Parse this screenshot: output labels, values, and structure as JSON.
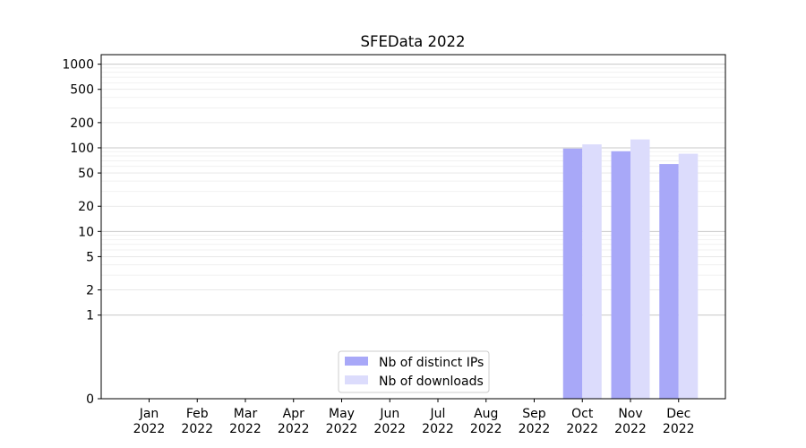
{
  "chart_data": {
    "type": "bar",
    "title": "SFEData 2022",
    "xlabel": "",
    "ylabel": "",
    "y_scale": "symlog",
    "ylim": [
      0,
      1300
    ],
    "grid": true,
    "legend_position": "lower-center",
    "categories": [
      {
        "month": "Jan",
        "year": "2022"
      },
      {
        "month": "Feb",
        "year": "2022"
      },
      {
        "month": "Mar",
        "year": "2022"
      },
      {
        "month": "Apr",
        "year": "2022"
      },
      {
        "month": "May",
        "year": "2022"
      },
      {
        "month": "Jun",
        "year": "2022"
      },
      {
        "month": "Jul",
        "year": "2022"
      },
      {
        "month": "Aug",
        "year": "2022"
      },
      {
        "month": "Sep",
        "year": "2022"
      },
      {
        "month": "Oct",
        "year": "2022"
      },
      {
        "month": "Nov",
        "year": "2022"
      },
      {
        "month": "Dec",
        "year": "2022"
      }
    ],
    "y_ticks": [
      "0",
      "1",
      "2",
      "5",
      "10",
      "20",
      "50",
      "100",
      "200",
      "500",
      "1000"
    ],
    "series": [
      {
        "name": "Nb of distinct IPs",
        "color": "#a8a8f8",
        "values": [
          0,
          0,
          0,
          0,
          0,
          0,
          0,
          0,
          0,
          98,
          91,
          64
        ]
      },
      {
        "name": "Nb of downloads",
        "color": "#dcdcfc",
        "values": [
          0,
          0,
          0,
          0,
          0,
          0,
          0,
          0,
          0,
          110,
          126,
          85
        ]
      }
    ]
  }
}
